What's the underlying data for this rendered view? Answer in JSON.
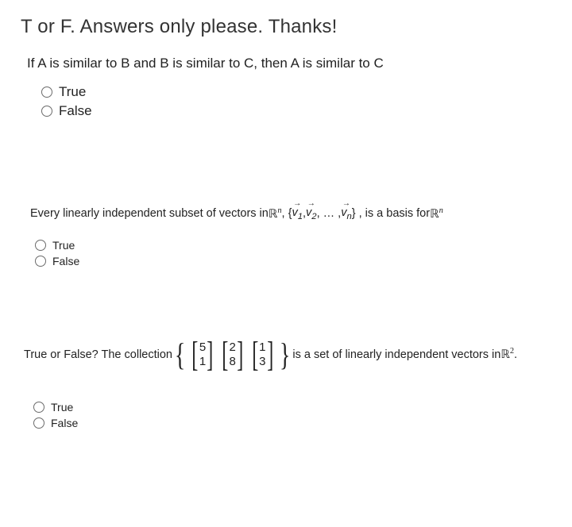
{
  "title": "T or F. Answers only please. Thanks!",
  "q1": {
    "text": "If A is similar to B and B is similar to C, then A is similar to C",
    "true": "True",
    "false": "False"
  },
  "q2": {
    "lead": "Every linearly independent subset of vectors in  ",
    "Rn": "ℝ",
    "n": "n",
    "set_open": ", { ",
    "v1": "v",
    "s1": "1",
    "sep1": ", ",
    "v2": "v",
    "s2": "2",
    "sep2": ", … , ",
    "vn": "v",
    "sn": "n",
    "set_close": "  } , is a basis for ",
    "true": "True",
    "false": "False"
  },
  "q3": {
    "lead": "True or False? The collection ",
    "m1": [
      "5",
      "1"
    ],
    "m2": [
      "2",
      "8"
    ],
    "m3": [
      "1",
      "3"
    ],
    "comma": ",",
    "tail1": " is a set of linearly independent vectors in ",
    "R": "ℝ",
    "two": "2",
    "dot": ".",
    "true": "True",
    "false": "False"
  }
}
